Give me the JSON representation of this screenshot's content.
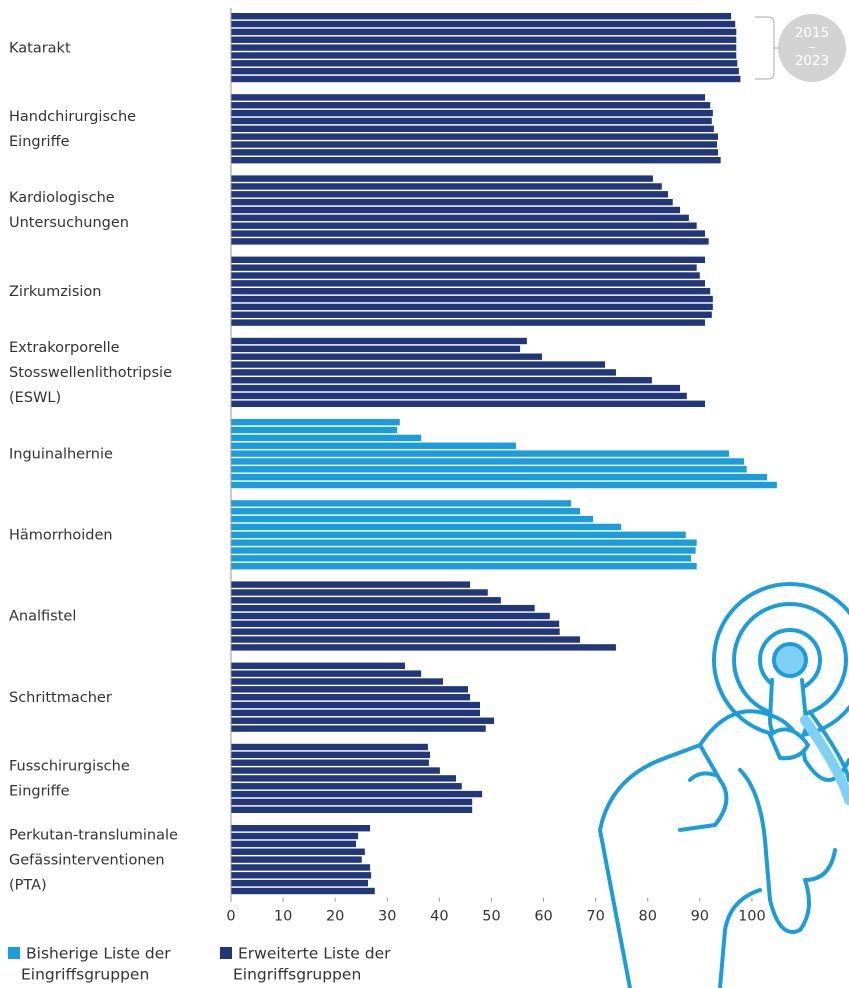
{
  "chart_data": {
    "type": "bar",
    "orientation": "horizontal",
    "categories": [
      [
        "Katarakt"
      ],
      [
        "Handchirurgische",
        "Eingriffe"
      ],
      [
        "Kardiologische",
        "Untersuchungen"
      ],
      [
        "Zirkumzision"
      ],
      [
        "Extrakorporelle",
        "Stosswellenlithotripsie",
        "(ESWL)"
      ],
      [
        "Inguinalhernie"
      ],
      [
        "Hämorrhoiden"
      ],
      [
        "Analfistel"
      ],
      [
        "Schrittmacher"
      ],
      [
        "Fusschirurgische",
        "Eingriffe"
      ],
      [
        "Perkutan-transluminale",
        "Gefässinterventionen",
        "(PTA)"
      ]
    ],
    "values": [
      [
        96,
        96.8,
        97,
        97,
        97,
        97,
        97.2,
        97.5,
        97.8
      ],
      [
        91,
        92,
        92.5,
        92.3,
        92.7,
        93.5,
        93.3,
        93.5,
        94
      ],
      [
        81,
        82.7,
        83.9,
        84.8,
        86.2,
        87.9,
        89.4,
        91,
        91.7
      ],
      [
        91,
        89.4,
        90,
        91,
        92,
        92.5,
        92.5,
        92.3,
        91
      ],
      [
        56.8,
        55.5,
        59.7,
        71.8,
        73.9,
        80.8,
        86.2,
        87.5,
        91
      ],
      [
        32.4,
        31.9,
        36.5,
        54.7,
        95.6,
        98.5,
        99,
        102.9,
        104.8
      ],
      [
        65.3,
        67,
        69.5,
        74.9,
        87.3,
        89.4,
        89.2,
        88.3,
        89.4
      ],
      [
        45.9,
        49.3,
        51.8,
        58.3,
        61.2,
        63,
        63.1,
        67,
        73.9
      ],
      [
        33.4,
        36.5,
        40.7,
        45.5,
        45.9,
        47.8,
        47.8,
        50.5,
        48.9
      ],
      [
        37.8,
        38.2,
        38,
        40.1,
        43.2,
        44.3,
        48.2,
        46.3,
        46.3
      ],
      [
        26.7,
        24.4,
        24,
        25.7,
        25.1,
        26.7,
        26.9,
        26.3,
        27.6
      ]
    ],
    "groups": [
      1,
      1,
      1,
      1,
      1,
      0,
      0,
      1,
      1,
      1,
      1
    ],
    "series": [
      {
        "name": [
          "Bisherige Liste der",
          "Eingriffsgruppen"
        ],
        "color": "#1b9ddb"
      },
      {
        "name": [
          "Erweiterte Liste der",
          "Eingriffsgruppen"
        ],
        "color": "#22367a"
      }
    ],
    "annotation": [
      "2015",
      "–",
      "2023"
    ],
    "xlim": [
      0,
      110
    ],
    "xticks": [
      0,
      10,
      20,
      30,
      40,
      50,
      60,
      70,
      80,
      90,
      100
    ]
  }
}
